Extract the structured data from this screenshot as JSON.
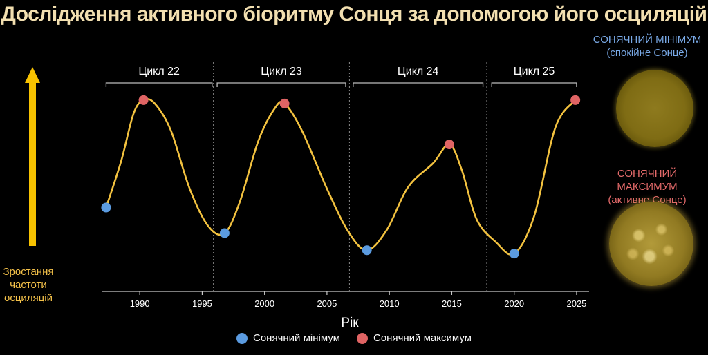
{
  "title": "Дослідження активного біоритму Сонця за допомогою його осциляцій",
  "side_panel": {
    "minimum_title": "СОНЯЧНИЙ МІНІМУМ",
    "minimum_subtitle": "(спокійне Сонце)",
    "maximum_title": "СОНЯЧНИЙ МАКСИМУМ",
    "maximum_subtitle": "(активне Сонце)"
  },
  "left_axis": {
    "label_lines": [
      "Зростання",
      "частоти",
      "осциляцій"
    ]
  },
  "legend": [
    {
      "label": "Сонячний мінімум",
      "color": "#5b9be0"
    },
    {
      "label": "Сонячний максимум",
      "color": "#e06464"
    }
  ],
  "colors": {
    "curve": "#f3c23f",
    "minimum": "#5b9be0",
    "maximum": "#e06464",
    "arrow": "#f7c200",
    "axis": "#c8c8c8",
    "divider": "#8a8a8a"
  },
  "chart_data": {
    "type": "line",
    "title": "Дослідження активного біоритму Сонця за допомогою його осциляцій",
    "xlabel": "Рік",
    "ylabel": "",
    "xlim": [
      1987,
      2026
    ],
    "ylim": [
      0,
      10
    ],
    "xticks": [
      1990,
      1995,
      2000,
      2005,
      2010,
      2015,
      2020,
      2025
    ],
    "grid": false,
    "legend_position": "bottom",
    "y_axis_hidden": true,
    "curve_points": [
      {
        "x": 1987.3,
        "y": 3.3
      },
      {
        "x": 1988.5,
        "y": 6.0
      },
      {
        "x": 1989.5,
        "y": 8.8
      },
      {
        "x": 1990.3,
        "y": 9.6
      },
      {
        "x": 1991.2,
        "y": 9.4
      },
      {
        "x": 1992.5,
        "y": 7.8
      },
      {
        "x": 1994.0,
        "y": 4.4
      },
      {
        "x": 1995.5,
        "y": 2.2
      },
      {
        "x": 1996.8,
        "y": 1.8
      },
      {
        "x": 1998.0,
        "y": 3.6
      },
      {
        "x": 1999.5,
        "y": 7.2
      },
      {
        "x": 2000.8,
        "y": 9.1
      },
      {
        "x": 2001.6,
        "y": 9.4
      },
      {
        "x": 2003.0,
        "y": 7.8
      },
      {
        "x": 2005.0,
        "y": 4.4
      },
      {
        "x": 2006.7,
        "y": 1.9
      },
      {
        "x": 2008.2,
        "y": 0.8
      },
      {
        "x": 2009.8,
        "y": 2.0
      },
      {
        "x": 2011.5,
        "y": 4.5
      },
      {
        "x": 2013.5,
        "y": 5.9
      },
      {
        "x": 2014.8,
        "y": 7.0
      },
      {
        "x": 2015.8,
        "y": 5.5
      },
      {
        "x": 2017.0,
        "y": 2.6
      },
      {
        "x": 2018.5,
        "y": 1.3
      },
      {
        "x": 2020.0,
        "y": 0.6
      },
      {
        "x": 2021.6,
        "y": 2.8
      },
      {
        "x": 2023.3,
        "y": 8.0
      },
      {
        "x": 2024.9,
        "y": 9.6
      }
    ],
    "minima": [
      {
        "x": 1987.3,
        "y": 3.3
      },
      {
        "x": 1996.8,
        "y": 1.8
      },
      {
        "x": 2008.2,
        "y": 0.8
      },
      {
        "x": 2020.0,
        "y": 0.6
      }
    ],
    "maxima": [
      {
        "x": 1990.3,
        "y": 9.6
      },
      {
        "x": 2001.6,
        "y": 9.4
      },
      {
        "x": 2014.8,
        "y": 7.0
      },
      {
        "x": 2024.9,
        "y": 9.6
      }
    ],
    "cycles": [
      {
        "label": "Цикл 22",
        "start": 1987.3,
        "end": 1995.8
      },
      {
        "label": "Цикл 23",
        "start": 1996.2,
        "end": 2006.5
      },
      {
        "label": "Цикл 24",
        "start": 2007.1,
        "end": 2017.5
      },
      {
        "label": "Цикл 25",
        "start": 2018.2,
        "end": 2025.0
      }
    ],
    "cycle_dividers": [
      1995.9,
      2006.8,
      2017.8
    ]
  }
}
